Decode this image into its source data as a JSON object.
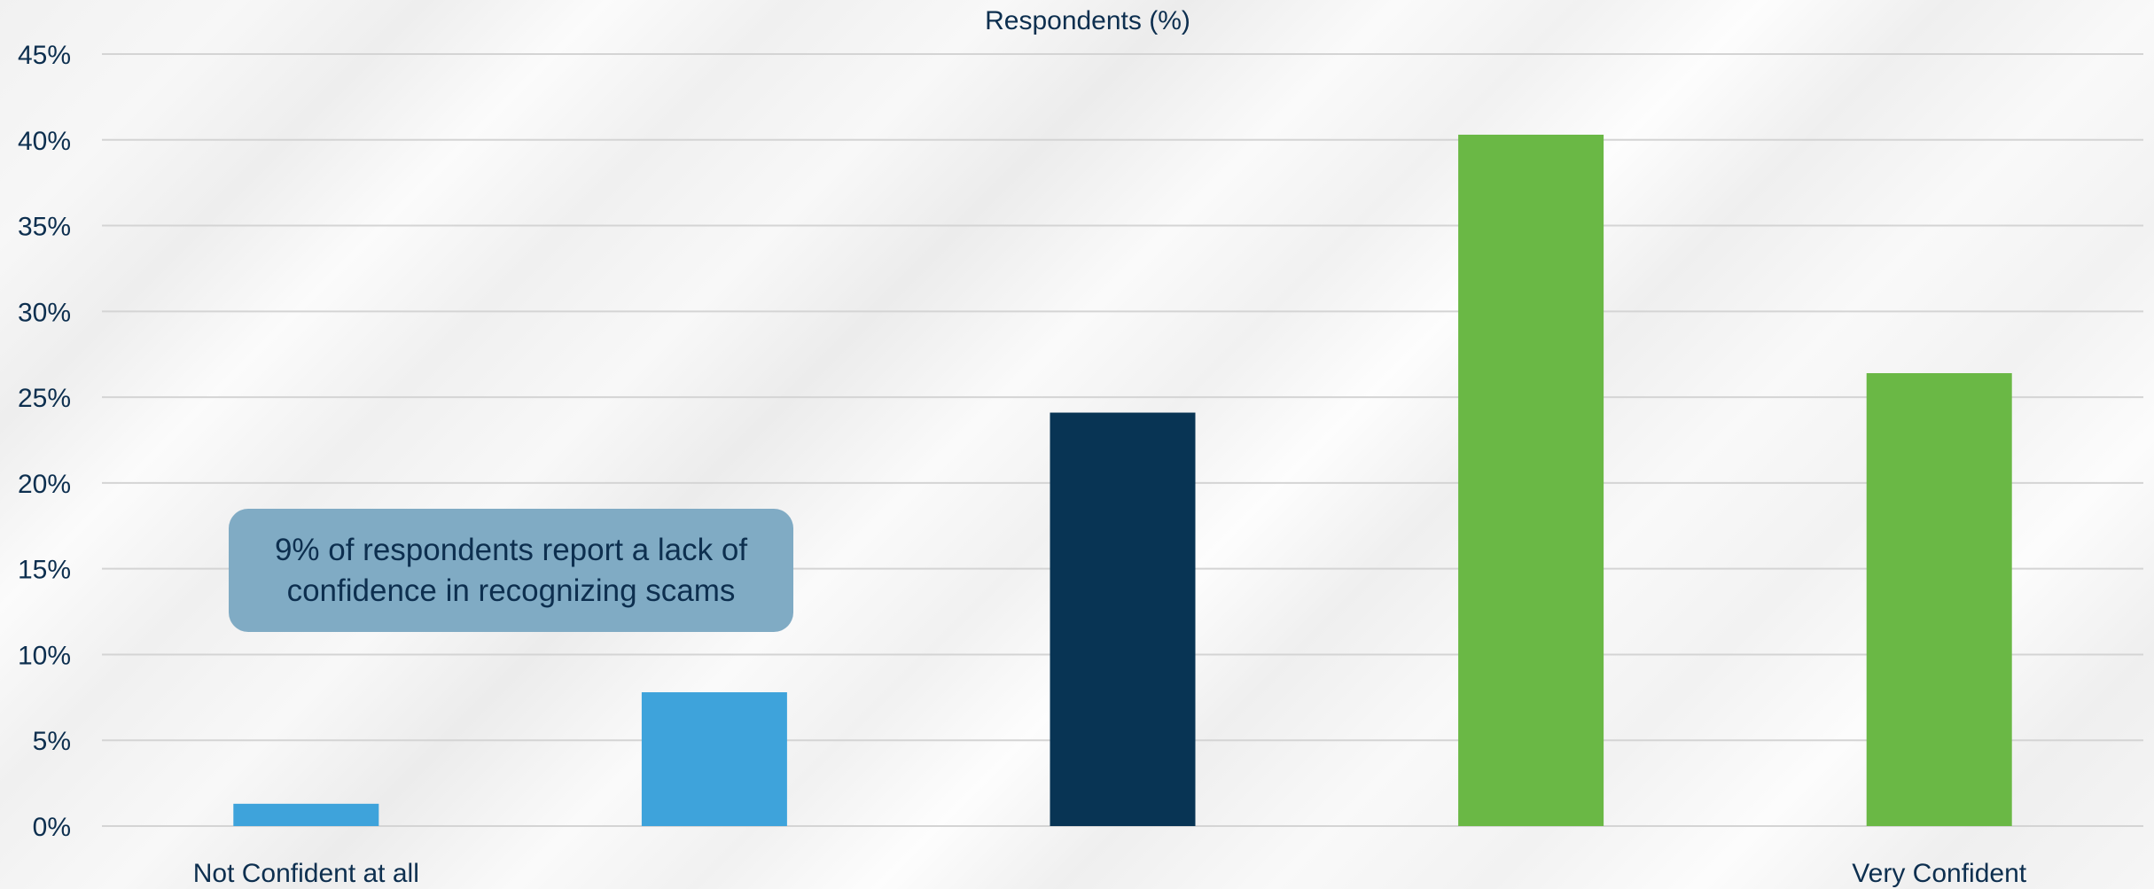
{
  "chart_data": {
    "type": "bar",
    "title": "Respondents (%)",
    "categories": [
      "Not Confident at all",
      "",
      "",
      "",
      "Very Confident"
    ],
    "values": [
      1.3,
      7.8,
      24.1,
      40.3,
      26.4
    ],
    "bar_colors": [
      "#3ea3db",
      "#3ea3db",
      "#083454",
      "#6ab845",
      "#6ab845"
    ],
    "ylim": [
      0,
      45
    ],
    "yticks": [
      "0%",
      "5%",
      "10%",
      "15%",
      "20%",
      "25%",
      "30%",
      "35%",
      "40%",
      "45%"
    ],
    "grid": true,
    "annotation": {
      "text": "9% of respondents report a lack of confidence in recognizing scams",
      "background": "#80abc4"
    },
    "text_color": "#0d2f4f",
    "grid_color": "#d4d4d4"
  }
}
